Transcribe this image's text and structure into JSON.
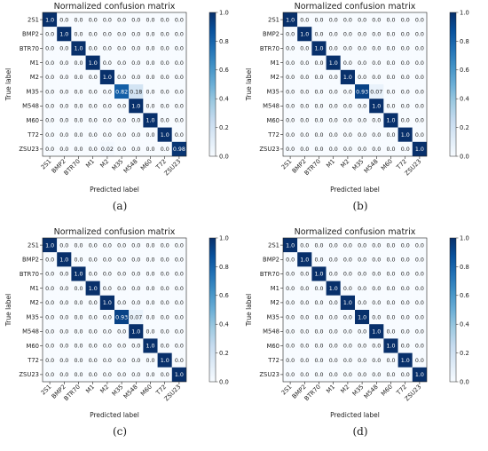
{
  "colors": {
    "cmap_low": "#f7fbff",
    "cmap_high": "#08306b",
    "text_dark": "#222222",
    "text_light": "#ffffff"
  },
  "chart_data": [
    {
      "type": "heatmap",
      "caption": "(a)",
      "title": "Normalized confusion matrix",
      "xlabel": "Predicted label",
      "ylabel": "True label",
      "categories": [
        "2S1",
        "BMP2",
        "BTR70",
        "M1",
        "M2",
        "M35",
        "M548",
        "M60",
        "T72",
        "ZSU23"
      ],
      "colorbar": {
        "range": [
          0.0,
          1.0
        ],
        "ticks": [
          "0.0",
          "0.2",
          "0.4",
          "0.6",
          "0.8",
          "1.0"
        ]
      },
      "cells": [
        [
          "1.0",
          "0.0",
          "0.0",
          "0.0",
          "0.0",
          "0.0",
          "0.0",
          "0.0",
          "0.0",
          "0.0"
        ],
        [
          "0.0",
          "1.0",
          "0.0",
          "0.0",
          "0.0",
          "0.0",
          "0.0",
          "0.0",
          "0.0",
          "0.0"
        ],
        [
          "0.0",
          "0.0",
          "1.0",
          "0.0",
          "0.0",
          "0.0",
          "0.0",
          "0.0",
          "0.0",
          "0.0"
        ],
        [
          "0.0",
          "0.0",
          "0.0",
          "1.0",
          "0.0",
          "0.0",
          "0.0",
          "0.0",
          "0.0",
          "0.0"
        ],
        [
          "0.0",
          "0.0",
          "0.0",
          "0.0",
          "1.0",
          "0.0",
          "0.0",
          "0.0",
          "0.0",
          "0.0"
        ],
        [
          "0.0",
          "0.0",
          "0.0",
          "0.0",
          "0.0",
          "0.82",
          "0.18",
          "0.0",
          "0.0",
          "0.0"
        ],
        [
          "0.0",
          "0.0",
          "0.0",
          "0.0",
          "0.0",
          "0.0",
          "1.0",
          "0.0",
          "0.0",
          "0.0"
        ],
        [
          "0.0",
          "0.0",
          "0.0",
          "0.0",
          "0.0",
          "0.0",
          "0.0",
          "1.0",
          "0.0",
          "0.0"
        ],
        [
          "0.0",
          "0.0",
          "0.0",
          "0.0",
          "0.0",
          "0.0",
          "0.0",
          "0.0",
          "1.0",
          "0.0"
        ],
        [
          "0.0",
          "0.0",
          "0.0",
          "0.0",
          "0.02",
          "0.0",
          "0.0",
          "0.0",
          "0.0",
          "0.98"
        ]
      ]
    },
    {
      "type": "heatmap",
      "caption": "(b)",
      "title": "Normalized confusion matrix",
      "xlabel": "Predicted label",
      "ylabel": "True label",
      "categories": [
        "2S1",
        "BMP2",
        "BTR70",
        "M1",
        "M2",
        "M35",
        "M548",
        "M60",
        "T72",
        "ZSU23"
      ],
      "colorbar": {
        "range": [
          0.0,
          1.0
        ],
        "ticks": [
          "0.0",
          "0.2",
          "0.4",
          "0.6",
          "0.8",
          "1.0"
        ]
      },
      "cells": [
        [
          "1.0",
          "0.0",
          "0.0",
          "0.0",
          "0.0",
          "0.0",
          "0.0",
          "0.0",
          "0.0",
          "0.0"
        ],
        [
          "0.0",
          "1.0",
          "0.0",
          "0.0",
          "0.0",
          "0.0",
          "0.0",
          "0.0",
          "0.0",
          "0.0"
        ],
        [
          "0.0",
          "0.0",
          "1.0",
          "0.0",
          "0.0",
          "0.0",
          "0.0",
          "0.0",
          "0.0",
          "0.0"
        ],
        [
          "0.0",
          "0.0",
          "0.0",
          "1.0",
          "0.0",
          "0.0",
          "0.0",
          "0.0",
          "0.0",
          "0.0"
        ],
        [
          "0.0",
          "0.0",
          "0.0",
          "0.0",
          "1.0",
          "0.0",
          "0.0",
          "0.0",
          "0.0",
          "0.0"
        ],
        [
          "0.0",
          "0.0",
          "0.0",
          "0.0",
          "0.0",
          "0.93",
          "0.07",
          "0.0",
          "0.0",
          "0.0"
        ],
        [
          "0.0",
          "0.0",
          "0.0",
          "0.0",
          "0.0",
          "0.0",
          "1.0",
          "0.0",
          "0.0",
          "0.0"
        ],
        [
          "0.0",
          "0.0",
          "0.0",
          "0.0",
          "0.0",
          "0.0",
          "0.0",
          "1.0",
          "0.0",
          "0.0"
        ],
        [
          "0.0",
          "0.0",
          "0.0",
          "0.0",
          "0.0",
          "0.0",
          "0.0",
          "0.0",
          "1.0",
          "0.0"
        ],
        [
          "0.0",
          "0.0",
          "0.0",
          "0.0",
          "0.0",
          "0.0",
          "0.0",
          "0.0",
          "0.0",
          "1.0"
        ]
      ]
    },
    {
      "type": "heatmap",
      "caption": "(c)",
      "title": "Normalized confusion matrix",
      "xlabel": "Predicted label",
      "ylabel": "True label",
      "categories": [
        "2S1",
        "BMP2",
        "BTR70",
        "M1",
        "M2",
        "M35",
        "M548",
        "M60",
        "T72",
        "ZSU23"
      ],
      "colorbar": {
        "range": [
          0.0,
          1.0
        ],
        "ticks": [
          "0.0",
          "0.2",
          "0.4",
          "0.6",
          "0.8",
          "1.0"
        ]
      },
      "cells": [
        [
          "1.0",
          "0.0",
          "0.0",
          "0.0",
          "0.0",
          "0.0",
          "0.0",
          "0.0",
          "0.0",
          "0.0"
        ],
        [
          "0.0",
          "1.0",
          "0.0",
          "0.0",
          "0.0",
          "0.0",
          "0.0",
          "0.0",
          "0.0",
          "0.0"
        ],
        [
          "0.0",
          "0.0",
          "1.0",
          "0.0",
          "0.0",
          "0.0",
          "0.0",
          "0.0",
          "0.0",
          "0.0"
        ],
        [
          "0.0",
          "0.0",
          "0.0",
          "1.0",
          "0.0",
          "0.0",
          "0.0",
          "0.0",
          "0.0",
          "0.0"
        ],
        [
          "0.0",
          "0.0",
          "0.0",
          "0.0",
          "1.0",
          "0.0",
          "0.0",
          "0.0",
          "0.0",
          "0.0"
        ],
        [
          "0.0",
          "0.0",
          "0.0",
          "0.0",
          "0.0",
          "0.93",
          "0.07",
          "0.0",
          "0.0",
          "0.0"
        ],
        [
          "0.0",
          "0.0",
          "0.0",
          "0.0",
          "0.0",
          "0.0",
          "1.0",
          "0.0",
          "0.0",
          "0.0"
        ],
        [
          "0.0",
          "0.0",
          "0.0",
          "0.0",
          "0.0",
          "0.0",
          "0.0",
          "1.0",
          "0.0",
          "0.0"
        ],
        [
          "0.0",
          "0.0",
          "0.0",
          "0.0",
          "0.0",
          "0.0",
          "0.0",
          "0.0",
          "1.0",
          "0.0"
        ],
        [
          "0.0",
          "0.0",
          "0.0",
          "0.0",
          "0.0",
          "0.0",
          "0.0",
          "0.0",
          "0.0",
          "1.0"
        ]
      ]
    },
    {
      "type": "heatmap",
      "caption": "(d)",
      "title": "Normalized confusion matrix",
      "xlabel": "Predicted label",
      "ylabel": "True label",
      "categories": [
        "2S1",
        "BMP2",
        "BTR70",
        "M1",
        "M2",
        "M35",
        "M548",
        "M60",
        "T72",
        "ZSU23"
      ],
      "colorbar": {
        "range": [
          0.0,
          1.0
        ],
        "ticks": [
          "0.0",
          "0.2",
          "0.4",
          "0.6",
          "0.8",
          "1.0"
        ]
      },
      "cells": [
        [
          "1.0",
          "0.0",
          "0.0",
          "0.0",
          "0.0",
          "0.0",
          "0.0",
          "0.0",
          "0.0",
          "0.0"
        ],
        [
          "0.0",
          "1.0",
          "0.0",
          "0.0",
          "0.0",
          "0.0",
          "0.0",
          "0.0",
          "0.0",
          "0.0"
        ],
        [
          "0.0",
          "0.0",
          "1.0",
          "0.0",
          "0.0",
          "0.0",
          "0.0",
          "0.0",
          "0.0",
          "0.0"
        ],
        [
          "0.0",
          "0.0",
          "0.0",
          "1.0",
          "0.0",
          "0.0",
          "0.0",
          "0.0",
          "0.0",
          "0.0"
        ],
        [
          "0.0",
          "0.0",
          "0.0",
          "0.0",
          "1.0",
          "0.0",
          "0.0",
          "0.0",
          "0.0",
          "0.0"
        ],
        [
          "0.0",
          "0.0",
          "0.0",
          "0.0",
          "0.0",
          "1.0",
          "0.0",
          "0.0",
          "0.0",
          "0.0"
        ],
        [
          "0.0",
          "0.0",
          "0.0",
          "0.0",
          "0.0",
          "0.0",
          "1.0",
          "0.0",
          "0.0",
          "0.0"
        ],
        [
          "0.0",
          "0.0",
          "0.0",
          "0.0",
          "0.0",
          "0.0",
          "0.0",
          "1.0",
          "0.0",
          "0.0"
        ],
        [
          "0.0",
          "0.0",
          "0.0",
          "0.0",
          "0.0",
          "0.0",
          "0.0",
          "0.0",
          "1.0",
          "0.0"
        ],
        [
          "0.0",
          "0.0",
          "0.0",
          "0.0",
          "0.0",
          "0.0",
          "0.0",
          "0.0",
          "0.0",
          "1.0"
        ]
      ]
    }
  ]
}
